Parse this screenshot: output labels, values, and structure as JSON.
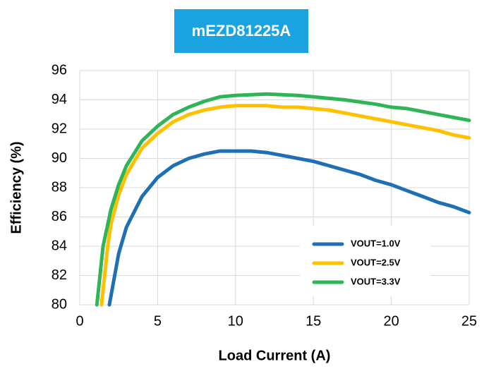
{
  "chart_data": {
    "type": "line",
    "title": "mEZD81225A",
    "xlabel": "Load Current (A)",
    "ylabel": "Efficiency (%)",
    "xlim": [
      0,
      25
    ],
    "xticks": [
      0,
      5,
      10,
      15,
      20,
      25
    ],
    "ylim": [
      80,
      96
    ],
    "yticks": [
      80,
      82,
      84,
      86,
      88,
      90,
      92,
      94,
      96
    ],
    "grid": true,
    "legend": "lower right",
    "series": [
      {
        "name": "VOUT=1.0V",
        "color": "#1f6fb5",
        "x": [
          1.9,
          2.5,
          3,
          4,
          5,
          6,
          7,
          8,
          9,
          10,
          11,
          12,
          13,
          14,
          15,
          16,
          17,
          18,
          19,
          20,
          21,
          22,
          23,
          24,
          25
        ],
        "values": [
          80,
          83.5,
          85.3,
          87.4,
          88.7,
          89.5,
          90.0,
          90.3,
          90.5,
          90.5,
          90.5,
          90.4,
          90.2,
          90.0,
          89.8,
          89.5,
          89.2,
          88.9,
          88.5,
          88.2,
          87.8,
          87.4,
          87.0,
          86.7,
          86.3
        ]
      },
      {
        "name": "VOUT=2.5V",
        "color": "#ffc000",
        "x": [
          1.4,
          1.8,
          2,
          2.5,
          3,
          4,
          5,
          6,
          7,
          8,
          9,
          10,
          11,
          12,
          13,
          14,
          15,
          16,
          17,
          18,
          19,
          20,
          21,
          22,
          23,
          24,
          25
        ],
        "values": [
          80,
          84,
          85.5,
          87.5,
          88.9,
          90.7,
          91.7,
          92.5,
          93.0,
          93.3,
          93.5,
          93.6,
          93.6,
          93.6,
          93.5,
          93.5,
          93.4,
          93.3,
          93.1,
          92.9,
          92.7,
          92.5,
          92.3,
          92.1,
          91.9,
          91.6,
          91.4
        ]
      },
      {
        "name": "VOUT=3.3V",
        "color": "#2fb457",
        "x": [
          1.1,
          1.5,
          2,
          2.5,
          3,
          4,
          5,
          6,
          7,
          8,
          9,
          10,
          11,
          12,
          13,
          14,
          15,
          16,
          17,
          18,
          19,
          20,
          21,
          22,
          23,
          24,
          25
        ],
        "values": [
          80,
          84,
          86.5,
          88.2,
          89.5,
          91.2,
          92.2,
          93.0,
          93.5,
          93.9,
          94.2,
          94.3,
          94.35,
          94.4,
          94.35,
          94.3,
          94.2,
          94.1,
          94.0,
          93.85,
          93.7,
          93.5,
          93.4,
          93.2,
          93.0,
          92.8,
          92.6
        ]
      }
    ]
  }
}
